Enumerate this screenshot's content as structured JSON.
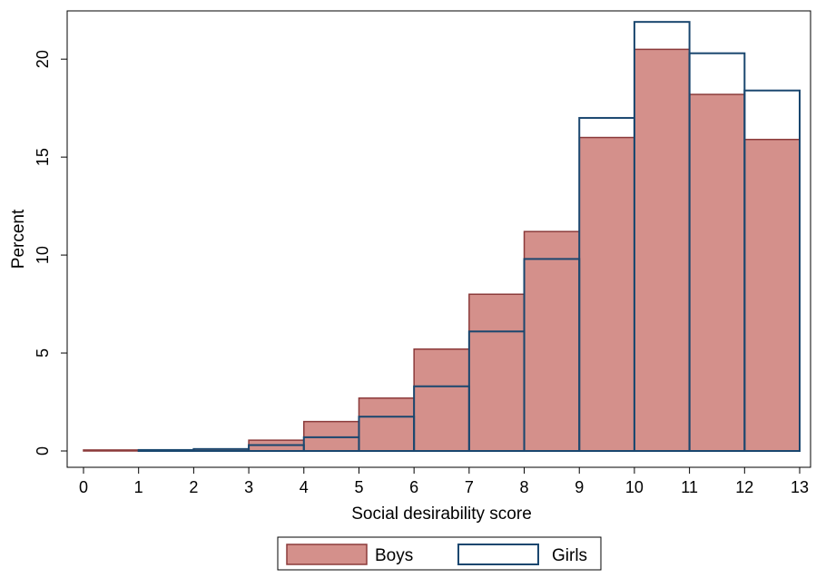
{
  "chart_data": {
    "type": "bar",
    "title": "",
    "xlabel": "Social desirability score",
    "ylabel": "Percent",
    "x_ticks": [
      "0",
      "1",
      "2",
      "3",
      "4",
      "5",
      "6",
      "7",
      "8",
      "9",
      "10",
      "11",
      "12",
      "13"
    ],
    "y_ticks": [
      "0",
      "5",
      "10",
      "15",
      "20"
    ],
    "bins": [
      {
        "from": 0,
        "to": 1
      },
      {
        "from": 1,
        "to": 2
      },
      {
        "from": 2,
        "to": 3
      },
      {
        "from": 3,
        "to": 4
      },
      {
        "from": 4,
        "to": 5
      },
      {
        "from": 5,
        "to": 6
      },
      {
        "from": 6,
        "to": 7
      },
      {
        "from": 7,
        "to": 8
      },
      {
        "from": 8,
        "to": 9
      },
      {
        "from": 9,
        "to": 10
      },
      {
        "from": 10,
        "to": 11
      },
      {
        "from": 11,
        "to": 12
      },
      {
        "from": 12,
        "to": 13
      }
    ],
    "series": [
      {
        "name": "Boys",
        "style": "filled",
        "fill_color": "#d4908b",
        "line_color": "#8b3a3a",
        "values": [
          0.05,
          0.05,
          0.1,
          0.55,
          1.5,
          2.7,
          5.2,
          8.0,
          11.2,
          16.0,
          20.5,
          18.2,
          15.9
        ]
      },
      {
        "name": "Girls",
        "style": "outline",
        "fill_color": "none",
        "line_color": "#1a476f",
        "values": [
          0.0,
          0.05,
          0.1,
          0.3,
          0.7,
          1.75,
          3.3,
          6.1,
          9.8,
          17.0,
          21.9,
          20.3,
          18.4
        ]
      }
    ],
    "xlim": [
      0,
      13
    ],
    "ylim": [
      0,
      22
    ],
    "grid": false,
    "legend_position": "bottom"
  }
}
